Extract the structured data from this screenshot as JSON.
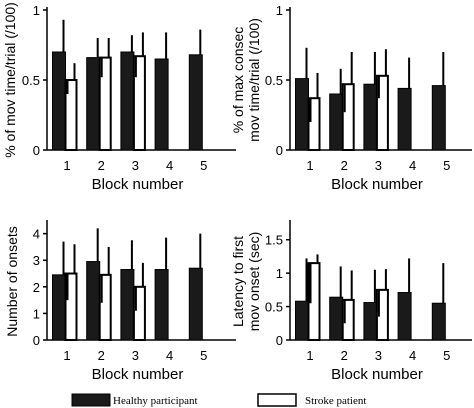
{
  "legend": [
    {
      "label": "Healthy participant",
      "color": "#1a1a1a"
    },
    {
      "label": "Stroke patient",
      "color": "#ffffff"
    }
  ],
  "chart_data": [
    {
      "type": "bar",
      "categories": [
        "1",
        "2",
        "3",
        "4",
        "5"
      ],
      "xlabel": "Block number",
      "ylabel": "% of mov time/trial (/100)",
      "ylim": [
        0,
        1
      ],
      "yticks": [
        0,
        0.5,
        1
      ],
      "series": [
        {
          "name": "Healthy participant",
          "values": [
            0.7,
            0.66,
            0.7,
            0.65,
            0.68
          ],
          "err_upper": [
            0.93,
            0.8,
            0.82,
            0.84,
            0.86
          ]
        },
        {
          "name": "Stroke patient",
          "values": [
            0.5,
            0.66,
            0.67,
            null,
            null
          ],
          "err_upper": [
            0.62,
            0.8,
            0.84,
            null,
            null
          ],
          "err_lower": [
            0.4,
            0.52,
            0.52,
            null,
            null
          ]
        }
      ]
    },
    {
      "type": "bar",
      "categories": [
        "1",
        "2",
        "3",
        "4",
        "5"
      ],
      "xlabel": "Block number",
      "ylabel": "% of max consec mov time/trial (/100)",
      "ylim": [
        0,
        1
      ],
      "yticks": [
        0,
        0.5,
        1
      ],
      "series": [
        {
          "name": "Healthy participant",
          "values": [
            0.51,
            0.4,
            0.47,
            0.44,
            0.46
          ],
          "err_upper": [
            0.73,
            0.58,
            0.7,
            0.66,
            0.7
          ]
        },
        {
          "name": "Stroke patient",
          "values": [
            0.37,
            0.47,
            0.53,
            null,
            null
          ],
          "err_upper": [
            0.55,
            0.7,
            0.72,
            null,
            null
          ],
          "err_lower": [
            0.2,
            0.27,
            0.37,
            null,
            null
          ]
        }
      ]
    },
    {
      "type": "bar",
      "categories": [
        "1",
        "2",
        "3",
        "4",
        "5"
      ],
      "xlabel": "Block number",
      "ylabel": "Number of onsets",
      "ylim": [
        0,
        4.4
      ],
      "yticks": [
        0,
        1,
        2,
        3,
        4
      ],
      "series": [
        {
          "name": "Healthy participant",
          "values": [
            2.45,
            2.95,
            2.65,
            2.65,
            2.7
          ],
          "err_upper": [
            3.7,
            4.2,
            3.75,
            3.85,
            4.0
          ]
        },
        {
          "name": "Stroke patient",
          "values": [
            2.5,
            2.45,
            2.0,
            null,
            null
          ],
          "err_upper": [
            3.6,
            3.5,
            2.9,
            null,
            null
          ],
          "err_lower": [
            1.5,
            1.4,
            1.1,
            null,
            null
          ]
        }
      ]
    },
    {
      "type": "bar",
      "categories": [
        "1",
        "2",
        "3",
        "4",
        "5"
      ],
      "xlabel": "Block number",
      "ylabel": "Latency to first mov onset (sec)",
      "ylim": [
        0,
        1.75
      ],
      "yticks": [
        0,
        0.5,
        1,
        1.5
      ],
      "series": [
        {
          "name": "Healthy participant",
          "values": [
            0.58,
            0.64,
            0.56,
            0.71,
            0.55
          ],
          "err_upper": [
            1.22,
            1.1,
            1.05,
            1.22,
            1.15
          ]
        },
        {
          "name": "Stroke patient",
          "values": [
            1.15,
            0.6,
            0.75,
            null,
            null
          ],
          "err_upper": [
            1.28,
            1.04,
            1.06,
            null,
            null
          ],
          "err_lower": [
            0.55,
            0.25,
            0.35,
            null,
            null
          ]
        }
      ]
    }
  ]
}
